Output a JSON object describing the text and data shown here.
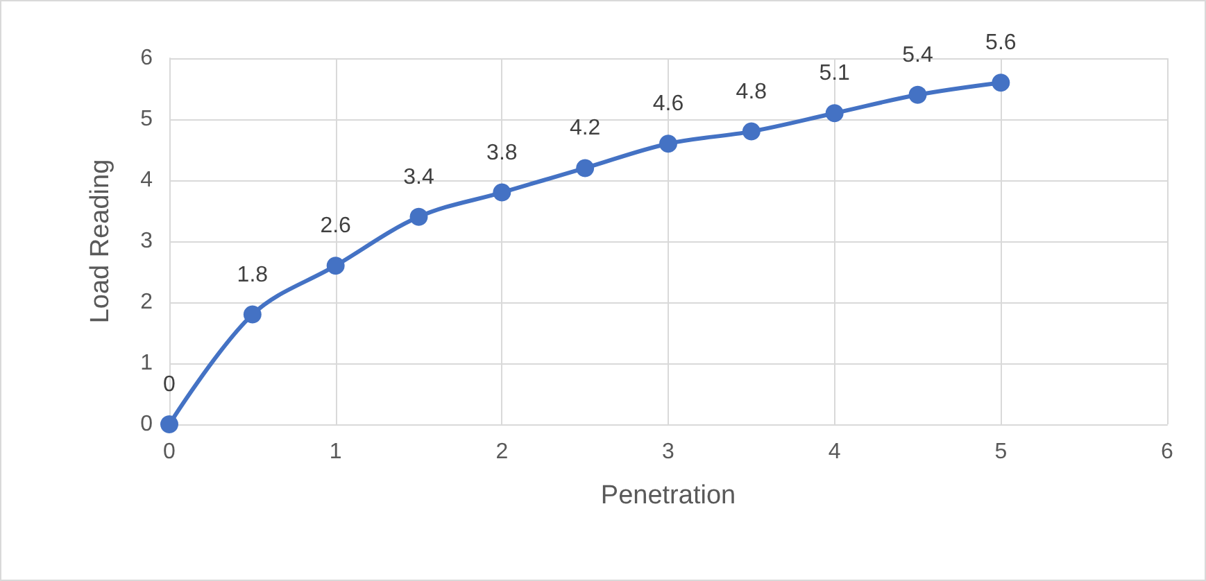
{
  "chart_data": {
    "type": "line",
    "xlabel": "Penetration",
    "ylabel": "Load Reading",
    "x": [
      0,
      0.5,
      1,
      1.5,
      2,
      2.5,
      3,
      3.5,
      4,
      4.5,
      5
    ],
    "series": [
      {
        "color": "#4472c4",
        "values": [
          0,
          1.8,
          2.6,
          3.4,
          3.8,
          4.2,
          4.6,
          4.8,
          5.1,
          5.4,
          5.6
        ]
      }
    ],
    "xlim": [
      0,
      6
    ],
    "xticks": [
      0,
      1,
      2,
      3,
      4,
      5,
      6
    ],
    "ylim": [
      0,
      6
    ],
    "yticks": [
      0,
      1,
      2,
      3,
      4,
      5,
      6
    ],
    "grid": true,
    "marker": "circle",
    "line_style": "solid",
    "data_labels": true
  }
}
